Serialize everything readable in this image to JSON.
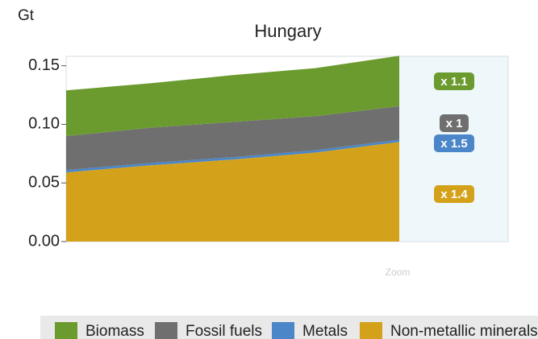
{
  "chart_data": {
    "type": "stacked_area",
    "title": "Hungary",
    "y_label": "Gt",
    "categories": [
      null,
      null,
      null,
      null,
      null
    ],
    "series": [
      {
        "name": "Biomass",
        "color": "#6b9b2f",
        "values": [
          0.039,
          0.038,
          0.04,
          0.041,
          0.043
        ]
      },
      {
        "name": "Fossil fuels",
        "color": "#6f6f6f",
        "values": [
          0.029,
          0.03,
          0.03,
          0.029,
          0.0285
        ]
      },
      {
        "name": "Metals",
        "color": "#4a86c8",
        "values": [
          0.002,
          0.002,
          0.002,
          0.002,
          0.002
        ]
      },
      {
        "name": "Non-metallic minerals",
        "color": "#d4a21a",
        "values": [
          0.059,
          0.065,
          0.07,
          0.076,
          0.085
        ]
      }
    ],
    "ylim": [
      0,
      0.158
    ],
    "yticks": [
      {
        "value": 0,
        "label": "0.00"
      },
      0.05,
      {
        "value": 0.1,
        "label": "0.10"
      },
      0.15
    ],
    "annotations": [
      {
        "label": "x 1.1",
        "color": "#6b9b2f"
      },
      {
        "label": "x 1",
        "color": "#6f6f6f"
      },
      {
        "label": "x 1.5",
        "color": "#4a86c8"
      },
      {
        "label": "x 1.4",
        "color": "#d4a21a"
      }
    ],
    "zoom_label": "Zoom"
  }
}
